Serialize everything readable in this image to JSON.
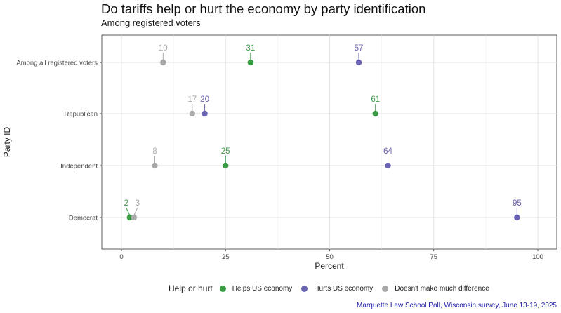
{
  "title": "Do tariffs help or hurt the economy by party identification",
  "subtitle": "Among registered voters",
  "caption": "Marquette Law School Poll, Wisconsin survey, June 13-19, 2025",
  "legend": {
    "title": "Help or hurt",
    "items": [
      {
        "label": "Helps US economy",
        "color": "#3a9a46"
      },
      {
        "label": "Hurts US economy",
        "color": "#6a63b2"
      },
      {
        "label": "Doesn't make much difference",
        "color": "#a9a9a9"
      }
    ]
  },
  "chart_data": {
    "type": "scatter",
    "title": "Do tariffs help or hurt the economy by party identification",
    "subtitle": "Among registered voters",
    "xlabel": "Percent",
    "ylabel": "Party ID",
    "xlim": [
      0,
      100
    ],
    "xticks": [
      0,
      25,
      50,
      75,
      100
    ],
    "categories": [
      "Among all registered voters",
      "Republican",
      "Independent",
      "Democrat"
    ],
    "grid": true,
    "legend_position": "bottom",
    "series": [
      {
        "name": "Helps US economy",
        "color": "#3a9a46",
        "values": [
          31,
          61,
          25,
          2
        ]
      },
      {
        "name": "Hurts US economy",
        "color": "#6a63b2",
        "values": [
          57,
          20,
          64,
          95
        ]
      },
      {
        "name": "Doesn't make much difference",
        "color": "#a9a9a9",
        "values": [
          10,
          17,
          8,
          3
        ]
      }
    ]
  }
}
